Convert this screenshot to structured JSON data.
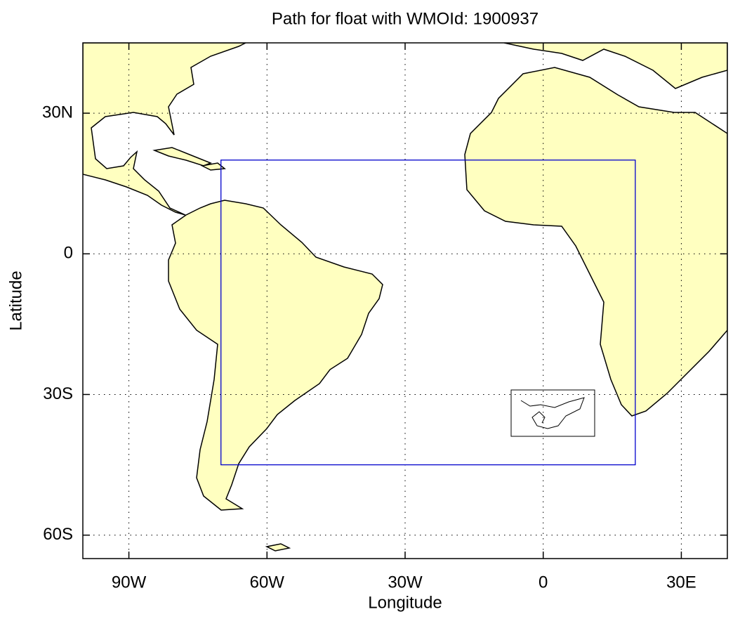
{
  "chart_data": {
    "type": "map",
    "title": "Path for float with WMOId: 1900937",
    "xlabel": "Longitude",
    "ylabel": "Latitude",
    "xlim": [
      -100,
      40
    ],
    "ylim": [
      -65,
      45
    ],
    "xticks": [
      {
        "value": -90,
        "label": "90W"
      },
      {
        "value": -60,
        "label": "60W"
      },
      {
        "value": -30,
        "label": "30W"
      },
      0,
      {
        "value": 30,
        "label": "30E"
      }
    ],
    "yticks": [
      {
        "value": 30,
        "label": "30N"
      },
      0,
      {
        "value": -30,
        "label": "30S"
      },
      {
        "value": -60,
        "label": "60S"
      }
    ],
    "grid": true,
    "region": {
      "lon": [
        -70,
        20
      ],
      "lat": [
        -45,
        20
      ],
      "color": "#0000cc"
    }
  }
}
